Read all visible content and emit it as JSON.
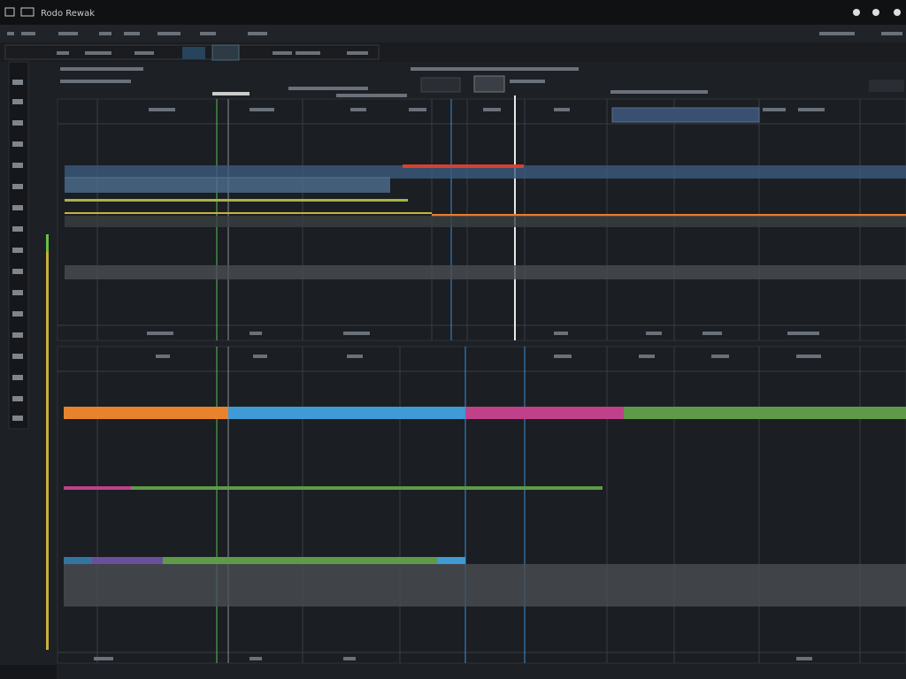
{
  "header": {
    "title": "Rodo Rewak"
  }
}
